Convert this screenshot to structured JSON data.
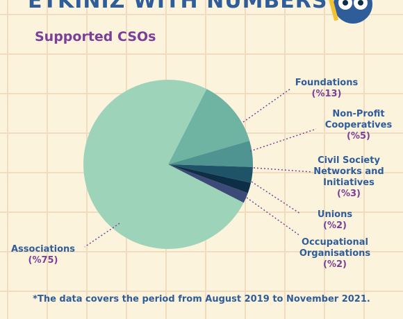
{
  "chart_data": {
    "type": "pie",
    "title": "ETKINIZ WITH NUMBERS",
    "subtitle": "Supported CSOs",
    "categories": [
      "Foundations",
      "Non-Profit Cooperatives",
      "Civil Society Networks and Initiatives",
      "Unions",
      "Occupational Organisations",
      "Associations"
    ],
    "values": [
      13,
      5,
      3,
      2,
      2,
      75
    ],
    "value_labels": [
      "(%13)",
      "(%5)",
      "(%3)",
      "(%2)",
      "(%2)",
      "(%75)"
    ],
    "colors": [
      "#6fb3a2",
      "#4f9490",
      "#1f5368",
      "#0e2e45",
      "#3c4a78",
      "#9dd3b8"
    ],
    "footnote": "*The data covers the period from August 2019 to November 2021."
  }
}
